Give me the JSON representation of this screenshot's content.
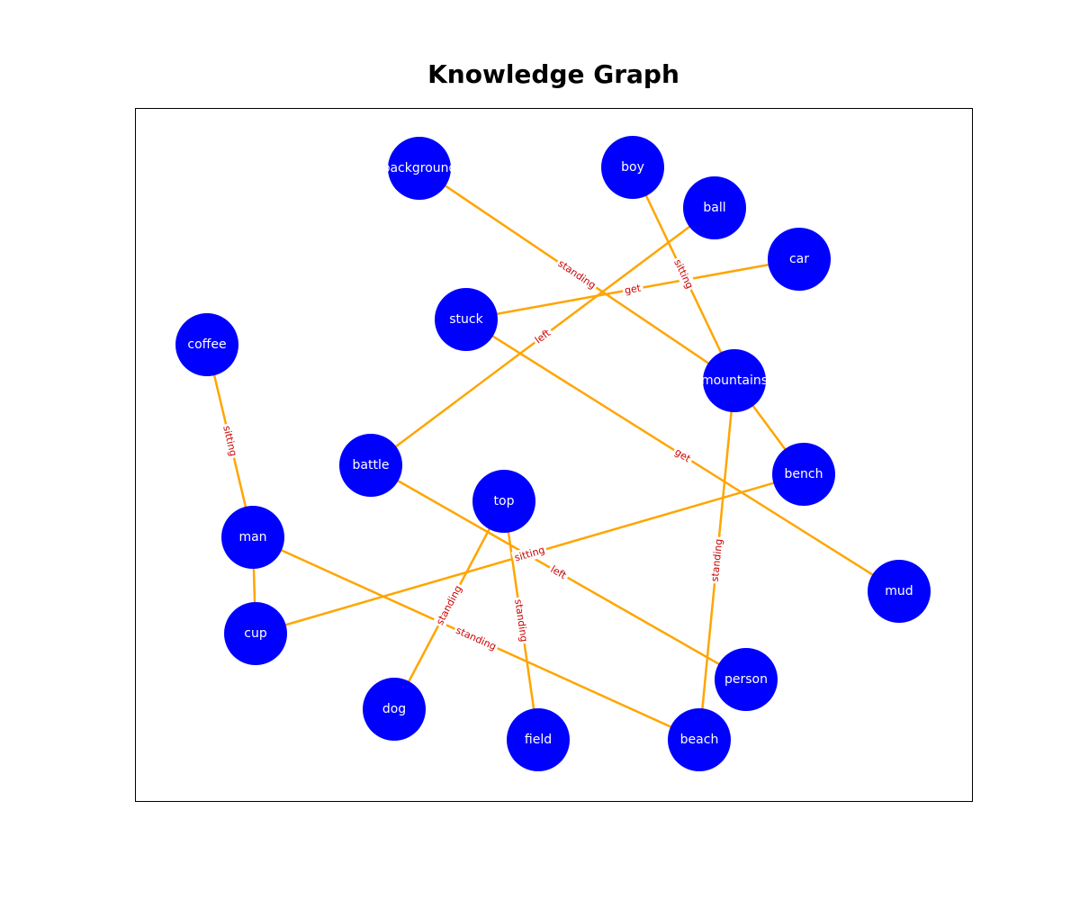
{
  "title": "Knowledge Graph",
  "colors": {
    "node_fill": "#0000ff",
    "node_text": "#ffffff",
    "edge": "#FFA500",
    "edge_label": "#cc0000",
    "frame": "#000000"
  },
  "nodes": [
    {
      "id": "background",
      "label": "background"
    },
    {
      "id": "boy",
      "label": "boy"
    },
    {
      "id": "ball",
      "label": "ball"
    },
    {
      "id": "car",
      "label": "car"
    },
    {
      "id": "stuck",
      "label": "stuck"
    },
    {
      "id": "coffee",
      "label": "coffee"
    },
    {
      "id": "mountains",
      "label": "mountains"
    },
    {
      "id": "battle",
      "label": "battle"
    },
    {
      "id": "top",
      "label": "top"
    },
    {
      "id": "bench",
      "label": "bench"
    },
    {
      "id": "man",
      "label": "man"
    },
    {
      "id": "mud",
      "label": "mud"
    },
    {
      "id": "cup",
      "label": "cup"
    },
    {
      "id": "person",
      "label": "person"
    },
    {
      "id": "dog",
      "label": "dog"
    },
    {
      "id": "field",
      "label": "field"
    },
    {
      "id": "beach",
      "label": "beach"
    }
  ],
  "edges": [
    {
      "source": "background",
      "target": "mountains",
      "label": "standing"
    },
    {
      "source": "boy",
      "target": "mountains",
      "label": "sitting"
    },
    {
      "source": "ball",
      "target": "battle",
      "label": "left"
    },
    {
      "source": "car",
      "target": "stuck",
      "label": "get"
    },
    {
      "source": "stuck",
      "target": "mud",
      "label": "get"
    },
    {
      "source": "coffee",
      "target": "man",
      "label": "sitting"
    },
    {
      "source": "mountains",
      "target": "bench",
      "label": ""
    },
    {
      "source": "mountains",
      "target": "beach",
      "label": "standing"
    },
    {
      "source": "battle",
      "target": "person",
      "label": "left"
    },
    {
      "source": "bench",
      "target": "cup",
      "label": "sitting"
    },
    {
      "source": "top",
      "target": "dog",
      "label": "standing"
    },
    {
      "source": "top",
      "target": "field",
      "label": "standing"
    },
    {
      "source": "man",
      "target": "beach",
      "label": "standing"
    },
    {
      "source": "man",
      "target": "cup",
      "label": ""
    }
  ]
}
